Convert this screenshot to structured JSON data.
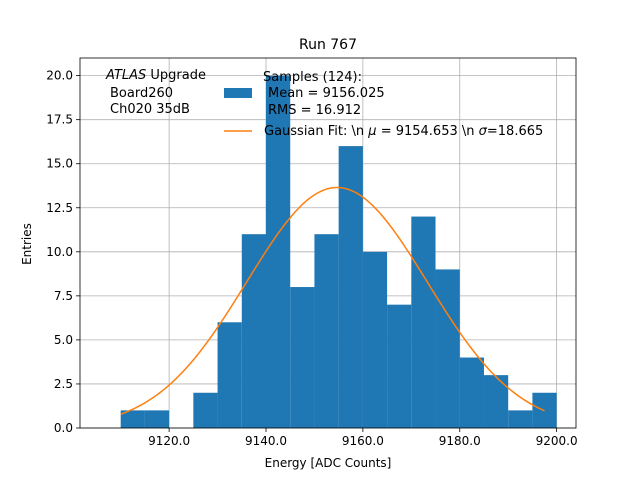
{
  "chart_data": {
    "type": "bar",
    "title": "Run 767",
    "xlabel": "Energy [ADC Counts]",
    "ylabel": "Entries",
    "xlim": [
      9101.6,
      9204.0
    ],
    "ylim": [
      0,
      21.0
    ],
    "grid": true,
    "x_ticks": [
      {
        "value": 9120.0,
        "label": "9120.0"
      },
      {
        "value": 9140.0,
        "label": "9140.0"
      },
      {
        "value": 9160.0,
        "label": "9160.0"
      },
      {
        "value": 9180.0,
        "label": "9180.0"
      },
      {
        "value": 9200.0,
        "label": "9200.0"
      }
    ],
    "y_ticks": [
      {
        "value": 0.0,
        "label": "0.0"
      },
      {
        "value": 2.5,
        "label": "2.5"
      },
      {
        "value": 5.0,
        "label": "5.0"
      },
      {
        "value": 7.5,
        "label": "7.5"
      },
      {
        "value": 10.0,
        "label": "10.0"
      },
      {
        "value": 12.5,
        "label": "12.5"
      },
      {
        "value": 15.0,
        "label": "15.0"
      },
      {
        "value": 17.5,
        "label": "17.5"
      },
      {
        "value": 20.0,
        "label": "20.0"
      }
    ],
    "histogram": {
      "name": "Samples (124):",
      "color": "#1f77b4",
      "bin_edges": [
        9110.0,
        9115.0,
        9120.0,
        9125.0,
        9130.0,
        9135.0,
        9140.0,
        9145.0,
        9150.0,
        9155.0,
        9160.0,
        9165.0,
        9170.0,
        9175.0,
        9180.0,
        9185.0,
        9190.0,
        9195.0,
        9200.0
      ],
      "counts": [
        1,
        1,
        0,
        2,
        6,
        11,
        20,
        8,
        11,
        16,
        10,
        7,
        12,
        9,
        4,
        3,
        1,
        2
      ]
    },
    "fit": {
      "name": "Gaussian Fit: \\n $\\mu$ = 9154.653 \\n $\\sigma$=18.665",
      "color": "#ff7f0e",
      "type": "gaussian",
      "amplitude": 13.65,
      "mu": 9154.653,
      "sigma": 18.665,
      "x_range": [
        9110.0,
        9197.5
      ]
    },
    "annotation": {
      "lines": [
        "ATLAS Upgrade",
        "Board260",
        "Ch020 35dB"
      ],
      "italic_word": "ATLAS",
      "rest_of_first_line": " Upgrade"
    },
    "legend": {
      "placement": "top-right",
      "hist_lines": [
        "Samples (124):",
        "Mean = 9156.025",
        "RMS = 16.912"
      ],
      "fit_prefix": "Gaussian Fit: \\n ",
      "fit_mu_label": " = 9154.653 \\n ",
      "fit_sigma_label": "=18.665"
    }
  }
}
